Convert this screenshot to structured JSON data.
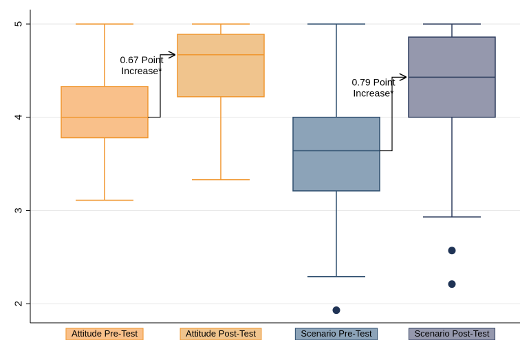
{
  "chart_data": {
    "type": "box",
    "title": "",
    "xlabel": "",
    "ylabel": "",
    "ylim": [
      1.8,
      5.15
    ],
    "yticks": [
      "2",
      "3",
      "4",
      "5"
    ],
    "grid": true,
    "categories": [
      "Attitude Pre-Test",
      "Attitude Post-Test",
      "Scenario Pre-Test",
      "Scenario Post-Test"
    ],
    "boxes": [
      {
        "category": "Attitude Pre-Test",
        "whisker_low": 3.11,
        "q1": 3.78,
        "median": 4.0,
        "q3": 4.33,
        "whisker_high": 5.0,
        "outliers": [],
        "fill": "#F9C08A",
        "stroke": "#F0962E"
      },
      {
        "category": "Attitude Post-Test",
        "whisker_low": 3.33,
        "q1": 4.22,
        "median": 4.67,
        "q3": 4.89,
        "whisker_high": 5.0,
        "outliers": [],
        "fill": "#F0C48D",
        "stroke": "#F0962E"
      },
      {
        "category": "Scenario Pre-Test",
        "whisker_low": 2.29,
        "q1": 3.21,
        "median": 3.64,
        "q3": 4.0,
        "whisker_high": 5.0,
        "outliers": [
          1.93
        ],
        "fill": "#8CA3B8",
        "stroke": "#2E4E6E"
      },
      {
        "category": "Scenario Post-Test",
        "whisker_low": 2.93,
        "q1": 4.0,
        "median": 4.43,
        "q3": 4.86,
        "whisker_high": 5.0,
        "outliers": [
          2.57,
          2.21
        ],
        "fill": "#9598AD",
        "stroke": "#2E3D5E"
      }
    ],
    "annotations": [
      {
        "text_line1": "0.67 Point",
        "text_line2": "Increase*",
        "from_index": 0,
        "to_index": 1,
        "from_value": 4.0,
        "to_value": 4.67
      },
      {
        "text_line1": "0.79 Point",
        "text_line2": "Increase*",
        "from_index": 2,
        "to_index": 3,
        "from_value": 3.64,
        "to_value": 4.43
      }
    ],
    "outlier_color": "#1F3355"
  }
}
